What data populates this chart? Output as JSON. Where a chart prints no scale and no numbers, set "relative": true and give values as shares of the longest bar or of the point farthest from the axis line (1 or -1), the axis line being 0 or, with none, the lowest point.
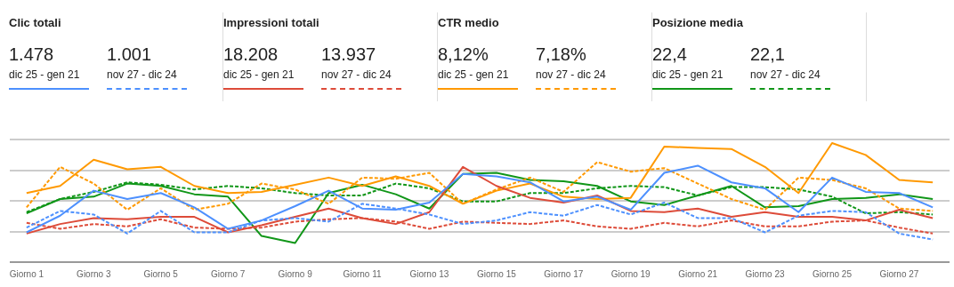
{
  "chart_data": [
    {
      "type": "other",
      "annotations": [
        "Clic totali",
        "1.478",
        "dic 25 - gen 21",
        "1.001",
        "nov 27 - dic 24",
        "Impressioni totali",
        "18.208",
        "dic 25 - gen 21",
        "13.937",
        "nov 27 - dic 24",
        "CTR medio",
        "8,12%",
        "dic 25 - gen 21",
        "7,18%",
        "nov 27 - dic 24",
        "Posizione media",
        "22,4",
        "dic 25 - gen 21",
        "22,1",
        "nov 27 - dic 24"
      ]
    },
    {
      "type": "line",
      "relative": true,
      "grid": "y",
      "tick_labels": "x",
      "marker": "none",
      "categories": [
        "Giorno 1",
        null,
        "Giorno 3",
        null,
        "Giorno 5",
        null,
        "Giorno 7",
        null,
        "Giorno 9",
        null,
        "Giorno 11",
        null,
        "Giorno 13",
        null,
        "Giorno 15",
        null,
        "Giorno 17",
        null,
        "Giorno 19",
        null,
        "Giorno 21",
        null,
        "Giorno 23",
        null,
        "Giorno 25",
        null,
        "Giorno 27",
        null
      ],
      "series": [
        {
          "color": "#4d90fe",
          "line_style": "solid",
          "values": [
            0.25,
            0.39,
            0.6,
            0.53,
            0.58,
            0.46,
            0.28,
            0.35,
            0.47,
            0.6,
            0.45,
            0.44,
            0.5,
            0.74,
            0.72,
            0.67,
            0.51,
            0.55,
            0.44,
            0.75,
            0.81,
            0.67,
            0.62,
            0.42,
            0.71,
            0.59,
            0.58,
            0.46
          ]
        },
        {
          "color": "#4d90fe",
          "line_style": "dashed",
          "values": [
            0.29,
            0.43,
            0.4,
            0.24,
            0.43,
            0.25,
            0.25,
            0.35,
            0.37,
            0.34,
            0.49,
            0.45,
            0.4,
            0.32,
            0.35,
            0.42,
            0.39,
            0.48,
            0.4,
            0.5,
            0.37,
            0.37,
            0.25,
            0.39,
            0.43,
            0.42,
            0.24,
            0.19
          ]
        },
        {
          "color": "#dd4b39",
          "line_style": "solid",
          "values": [
            0.24,
            0.32,
            0.37,
            0.36,
            0.38,
            0.38,
            0.25,
            0.31,
            0.38,
            0.45,
            0.37,
            0.32,
            0.42,
            0.8,
            0.64,
            0.54,
            0.5,
            0.56,
            0.43,
            0.42,
            0.45,
            0.38,
            0.42,
            0.38,
            0.38,
            0.35,
            0.44,
            0.37
          ]
        },
        {
          "color": "#dd4b39",
          "line_style": "dashed",
          "values": [
            0.33,
            0.28,
            0.32,
            0.3,
            0.36,
            0.29,
            0.28,
            0.29,
            0.34,
            0.36,
            0.37,
            0.34,
            0.28,
            0.34,
            0.33,
            0.32,
            0.35,
            0.3,
            0.28,
            0.33,
            0.3,
            0.35,
            0.3,
            0.3,
            0.34,
            0.35,
            0.29,
            0.24
          ]
        },
        {
          "color": "#ff9900",
          "line_style": "solid",
          "values": [
            0.58,
            0.64,
            0.86,
            0.78,
            0.8,
            0.64,
            0.58,
            0.59,
            0.65,
            0.71,
            0.64,
            0.72,
            0.64,
            0.49,
            0.6,
            0.66,
            0.55,
            0.53,
            0.54,
            0.97,
            0.96,
            0.95,
            0.8,
            0.58,
            1,
            0.9,
            0.69,
            0.67
          ]
        },
        {
          "color": "#ff9900",
          "line_style": "dashed",
          "values": [
            0.46,
            0.8,
            0.66,
            0.44,
            0.62,
            0.44,
            0.49,
            0.66,
            0.61,
            0.49,
            0.71,
            0.7,
            0.75,
            0.49,
            0.61,
            0.71,
            0.59,
            0.84,
            0.76,
            0.79,
            0.66,
            0.53,
            0.44,
            0.71,
            0.69,
            0.62,
            0.45,
            0.43
          ]
        },
        {
          "color": "#109618",
          "line_style": "solid",
          "values": [
            0.41,
            0.53,
            0.55,
            0.66,
            0.64,
            0.57,
            0.55,
            0.22,
            0.16,
            0.58,
            0.65,
            0.57,
            0.45,
            0.74,
            0.75,
            0.69,
            0.68,
            0.64,
            0.51,
            0.48,
            0.56,
            0.64,
            0.46,
            0.47,
            0.53,
            0.54,
            0.57,
            0.53
          ]
        },
        {
          "color": "#109618",
          "line_style": "dashed",
          "values": [
            0.42,
            0.53,
            0.59,
            0.67,
            0.65,
            0.61,
            0.64,
            0.62,
            0.58,
            0.56,
            0.56,
            0.66,
            0.62,
            0.51,
            0.51,
            0.58,
            0.58,
            0.62,
            0.64,
            0.63,
            0.56,
            0.63,
            0.63,
            0.61,
            0.55,
            0.41,
            0.42,
            0.4
          ]
        }
      ]
    }
  ]
}
